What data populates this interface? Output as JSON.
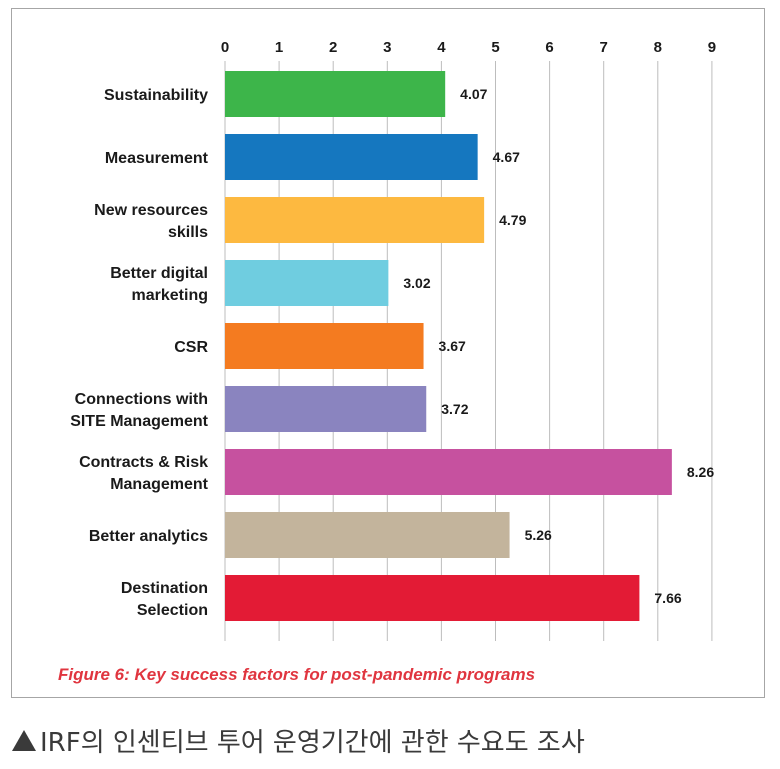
{
  "chart_data": {
    "type": "bar",
    "orientation": "horizontal",
    "x_ticks": [
      "0",
      "1",
      "2",
      "3",
      "4",
      "5",
      "6",
      "7",
      "8",
      "9"
    ],
    "xlim": [
      0,
      9
    ],
    "grid": "vertical",
    "categories": [
      [
        "Sustainability"
      ],
      [
        "Measurement"
      ],
      [
        "New resources",
        "skills"
      ],
      [
        "Better digital",
        "marketing"
      ],
      [
        "CSR"
      ],
      [
        "Connections with",
        "SITE Management"
      ],
      [
        "Contracts & Risk",
        "Management"
      ],
      [
        "Better analytics"
      ],
      [
        "Destination",
        "Selection"
      ]
    ],
    "values": [
      4.07,
      4.67,
      4.79,
      3.02,
      3.67,
      3.72,
      8.26,
      5.26,
      7.66
    ],
    "value_labels": [
      "4.07",
      "4.67",
      "4.79",
      "3.02",
      "3.67",
      "3.72",
      "8.26",
      "5.26",
      "7.66"
    ],
    "colors": [
      "#3db54a",
      "#1577bf",
      "#fdb940",
      "#6fcde0",
      "#f47b20",
      "#8a84bf",
      "#c6519f",
      "#c3b49c",
      "#e31b35"
    ]
  },
  "figure_caption": "Figure 6: Key success factors for post-pandemic programs",
  "caption": "IRF의 인센티브 투어 운영기간에 관한 수요도 조사"
}
